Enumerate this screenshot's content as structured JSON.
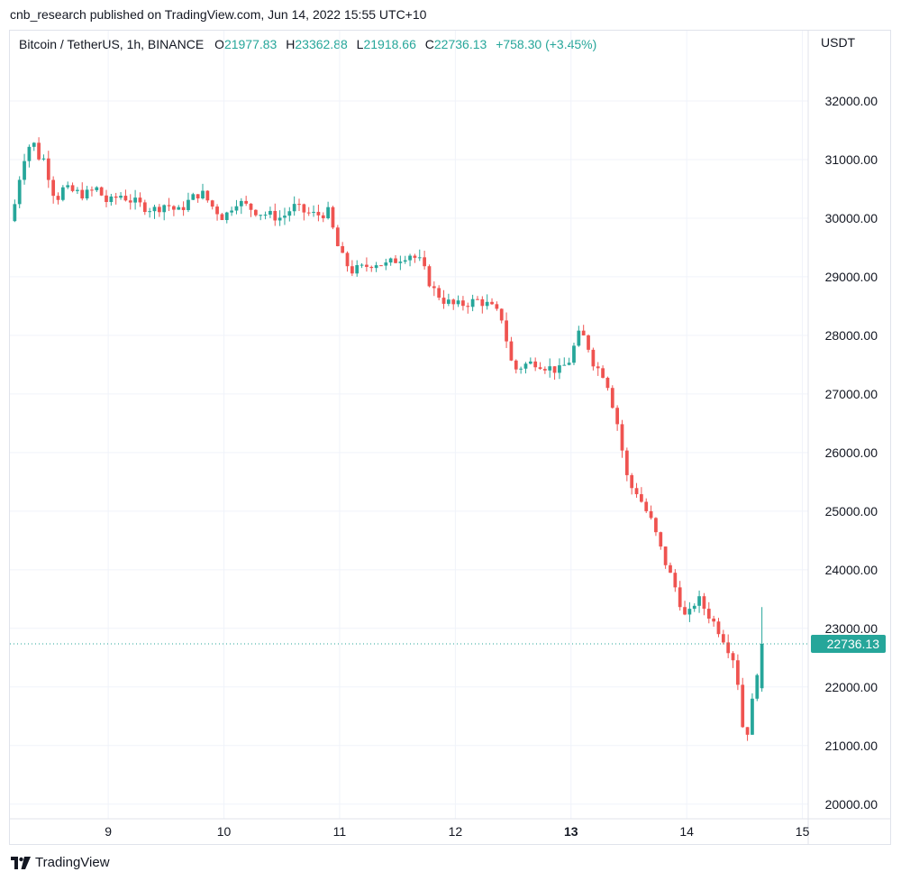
{
  "publisher_line": "cnb_research published on TradingView.com, Jun 14, 2022 15:55 UTC+10",
  "legend": {
    "symbol": "Bitcoin / TetherUS, 1h, BINANCE",
    "o_label": "O",
    "o_value": "21977.83",
    "h_label": "H",
    "h_value": "23362.88",
    "l_label": "L",
    "l_value": "21918.66",
    "c_label": "C",
    "c_value": "22736.13",
    "change": "+758.30 (+3.45%)"
  },
  "currency": "USDT",
  "footer_brand": "TradingView",
  "colors": {
    "up": "#26a69a",
    "down": "#ef5350",
    "grid": "#f0f3fa",
    "price_badge": "#26a69a"
  },
  "chart_data": {
    "type": "candlestick",
    "title": "Bitcoin / TetherUS, 1h, BINANCE",
    "xlabel": "",
    "ylabel": "USDT",
    "ylim": [
      19750,
      33200
    ],
    "xlim": [
      8.15,
      15.05
    ],
    "y_ticks": [
      20000,
      21000,
      22000,
      23000,
      24000,
      25000,
      26000,
      27000,
      28000,
      29000,
      30000,
      31000,
      32000
    ],
    "y_tick_labels": [
      "20000.00",
      "21000.00",
      "22000.00",
      "23000.00",
      "24000.00",
      "25000.00",
      "26000.00",
      "27000.00",
      "28000.00",
      "29000.00",
      "30000.00",
      "31000.00",
      "32000.00"
    ],
    "x_ticks": [
      9,
      10,
      11,
      12,
      13,
      14,
      15
    ],
    "x_tick_labels": [
      "9",
      "10",
      "11",
      "12",
      "13",
      "14",
      "15"
    ],
    "bold_x_tick": "13",
    "last_price": 22736.13,
    "last_price_label": "22736.13",
    "grid": true,
    "close_path": [
      [
        8.15,
        29950
      ],
      [
        8.2,
        30300
      ],
      [
        8.25,
        30900
      ],
      [
        8.3,
        31200
      ],
      [
        8.35,
        31300
      ],
      [
        8.4,
        31050
      ],
      [
        8.45,
        31000
      ],
      [
        8.5,
        30600
      ],
      [
        8.55,
        30300
      ],
      [
        8.6,
        30500
      ],
      [
        8.7,
        30450
      ],
      [
        8.8,
        30400
      ],
      [
        8.9,
        30500
      ],
      [
        9.0,
        30250
      ],
      [
        9.1,
        30400
      ],
      [
        9.2,
        30300
      ],
      [
        9.3,
        30200
      ],
      [
        9.4,
        30150
      ],
      [
        9.5,
        30250
      ],
      [
        9.6,
        30100
      ],
      [
        9.7,
        30300
      ],
      [
        9.8,
        30450
      ],
      [
        9.9,
        30200
      ],
      [
        10.0,
        30000
      ],
      [
        10.1,
        30300
      ],
      [
        10.2,
        30200
      ],
      [
        10.3,
        30100
      ],
      [
        10.4,
        30050
      ],
      [
        10.5,
        30000
      ],
      [
        10.6,
        30200
      ],
      [
        10.7,
        30100
      ],
      [
        10.8,
        30050
      ],
      [
        10.9,
        30100
      ],
      [
        11.0,
        29400
      ],
      [
        11.1,
        29100
      ],
      [
        11.2,
        29150
      ],
      [
        11.3,
        29250
      ],
      [
        11.4,
        29200
      ],
      [
        11.5,
        29300
      ],
      [
        11.6,
        29400
      ],
      [
        11.7,
        29250
      ],
      [
        11.8,
        28800
      ],
      [
        11.9,
        28600
      ],
      [
        12.0,
        28500
      ],
      [
        12.1,
        28550
      ],
      [
        12.2,
        28600
      ],
      [
        12.3,
        28500
      ],
      [
        12.4,
        28300
      ],
      [
        12.5,
        27400
      ],
      [
        12.6,
        27500
      ],
      [
        12.7,
        27550
      ],
      [
        12.8,
        27450
      ],
      [
        12.9,
        27400
      ],
      [
        13.0,
        27600
      ],
      [
        13.05,
        28000
      ],
      [
        13.1,
        28000
      ],
      [
        13.15,
        27800
      ],
      [
        13.2,
        27500
      ],
      [
        13.3,
        27300
      ],
      [
        13.4,
        26500
      ],
      [
        13.5,
        25400
      ],
      [
        13.55,
        25400
      ],
      [
        13.6,
        25200
      ],
      [
        13.7,
        24800
      ],
      [
        13.8,
        24200
      ],
      [
        13.9,
        23700
      ],
      [
        14.0,
        23100
      ],
      [
        14.05,
        23400
      ],
      [
        14.1,
        23500
      ],
      [
        14.2,
        23200
      ],
      [
        14.3,
        22900
      ],
      [
        14.4,
        22500
      ],
      [
        14.45,
        22000
      ],
      [
        14.5,
        21000
      ],
      [
        14.55,
        21500
      ],
      [
        14.6,
        22200
      ],
      [
        14.65,
        22736
      ]
    ]
  }
}
